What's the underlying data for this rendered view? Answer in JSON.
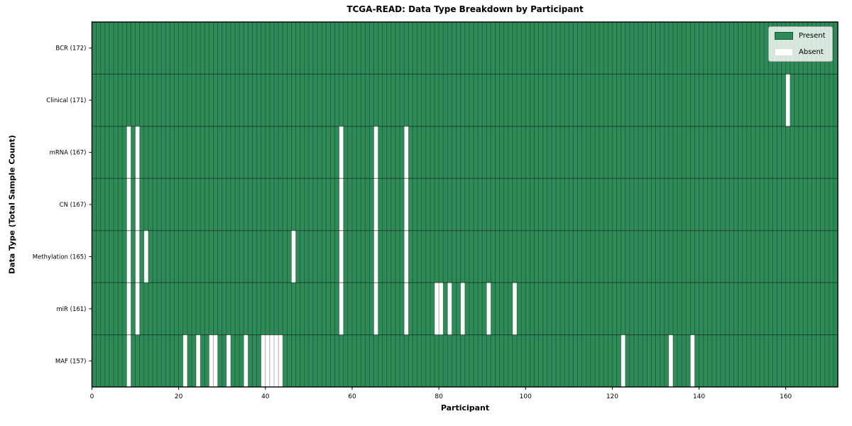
{
  "title": "TCGA-READ: Data Type Breakdown by Participant",
  "xlabel": "Participant",
  "ylabel": "Data Type (Total Sample Count)",
  "colors": {
    "present": "#2e8b57",
    "absent": "#ffffff",
    "cell_edge": "rgba(0,0,0,0.32)",
    "row_divider": "rgba(0,0,0,0.55)",
    "plot_border": "#000000",
    "tick": "#000000",
    "legend_border": "#a6a6a6"
  },
  "chart_data": {
    "type": "heatmap",
    "title": "TCGA-READ: Data Type Breakdown by Participant",
    "xlabel": "Participant",
    "ylabel": "Data Type (Total Sample Count)",
    "n_participants": 172,
    "x_ticks": [
      0,
      20,
      40,
      60,
      80,
      100,
      120,
      140,
      160
    ],
    "grid": "cell-edges",
    "legend_position": "upper-right",
    "rows": [
      {
        "label": "BCR (172)",
        "data_type": "BCR",
        "total": 172,
        "absent_participants": []
      },
      {
        "label": "Clinical (171)",
        "data_type": "Clinical",
        "total": 171,
        "absent_participants": [
          160
        ]
      },
      {
        "label": "mRNA (167)",
        "data_type": "mRNA",
        "total": 167,
        "absent_participants": [
          8,
          10,
          57,
          65,
          72
        ]
      },
      {
        "label": "CN (167)",
        "data_type": "CN",
        "total": 167,
        "absent_participants": [
          8,
          10,
          57,
          65,
          72
        ]
      },
      {
        "label": "Methylation (165)",
        "data_type": "Methylation",
        "total": 165,
        "absent_participants": [
          8,
          10,
          12,
          46,
          57,
          65,
          72
        ]
      },
      {
        "label": "miR (161)",
        "data_type": "miR",
        "total": 161,
        "absent_participants": [
          8,
          10,
          57,
          65,
          72,
          79,
          80,
          82,
          85,
          91,
          97
        ]
      },
      {
        "label": "MAF (157)",
        "data_type": "MAF",
        "total": 157,
        "absent_participants": [
          8,
          21,
          24,
          27,
          28,
          31,
          35,
          39,
          40,
          41,
          42,
          43,
          122,
          133,
          138
        ]
      }
    ],
    "legend_entries": [
      {
        "label": "Present",
        "color": "#2e8b57"
      },
      {
        "label": "Absent",
        "color": "#ffffff"
      }
    ]
  }
}
